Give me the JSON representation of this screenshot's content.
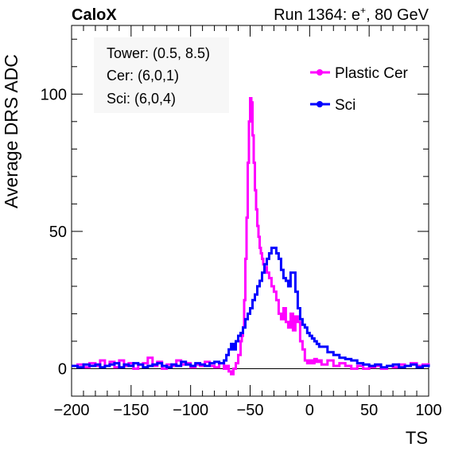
{
  "header": {
    "experiment": "CaloX",
    "run_prefix": "Run 1364: e",
    "run_superscript": "+",
    "run_suffix": ", 80 GeV"
  },
  "info_box": {
    "tower": "Tower: (0.5, 8.5)",
    "cer": "Cer: (6,0,1)",
    "sci": "Sci: (6,0,4)"
  },
  "chart_data": {
    "type": "line",
    "title": "",
    "xlabel": "TS",
    "ylabel": "Average DRS ADC",
    "xlim": [
      -200,
      100
    ],
    "ylim": [
      -10,
      125
    ],
    "xticks": [
      -200,
      -150,
      -100,
      -50,
      0,
      50,
      100
    ],
    "xtick_labels": [
      "−200",
      "−150",
      "−100",
      "−50",
      "0",
      "50",
      "100"
    ],
    "yticks": [
      0,
      50,
      100
    ],
    "ytick_labels": [
      "0",
      "50",
      "100"
    ],
    "grid": false,
    "legend_position": "top-right",
    "reference_line_y": 0,
    "series": [
      {
        "name": "Plastic Cer",
        "color": "#ff00ff",
        "x": [
          -200,
          -195,
          -190,
          -185,
          -180,
          -176,
          -172,
          -168,
          -164,
          -160,
          -156,
          -152,
          -148,
          -144,
          -140,
          -136,
          -132,
          -128,
          -124,
          -120,
          -116,
          -112,
          -108,
          -104,
          -100,
          -96,
          -92,
          -88,
          -84,
          -80,
          -76,
          -72,
          -70,
          -68,
          -66,
          -64,
          -62,
          -60,
          -58,
          -57,
          -56,
          -55,
          -54,
          -53,
          -52,
          -51,
          -50,
          -49,
          -48,
          -47,
          -46,
          -45,
          -44,
          -43,
          -42,
          -41,
          -40,
          -39,
          -38,
          -36,
          -34,
          -32,
          -30,
          -28,
          -26,
          -24,
          -22,
          -20,
          -18,
          -16,
          -14,
          -12,
          -10,
          -8,
          -6,
          -4,
          -2,
          0,
          2,
          4,
          6,
          8,
          10,
          15,
          20,
          25,
          30,
          35,
          40,
          45,
          50,
          55,
          60,
          65,
          70,
          75,
          80,
          85,
          90,
          95,
          100
        ],
        "values": [
          1.0,
          1.5,
          0.5,
          2.0,
          1.0,
          3.0,
          1.0,
          2.5,
          0.5,
          3.0,
          1.0,
          2.0,
          0.0,
          1.5,
          2.0,
          4.0,
          1.0,
          2.5,
          0.0,
          1.5,
          1.0,
          3.0,
          1.5,
          2.0,
          0.5,
          1.5,
          1.0,
          2.5,
          1.0,
          0.5,
          2.0,
          0.0,
          1.0,
          -1.0,
          -2.0,
          0.0,
          2.0,
          5.0,
          10.0,
          12.0,
          15.0,
          25.0,
          40.0,
          55.0,
          75.0,
          90.0,
          98.5,
          97.0,
          85.0,
          75.0,
          65.0,
          58.0,
          52.0,
          48.0,
          44.0,
          42.0,
          40.0,
          38.0,
          37.0,
          35.0,
          33.0,
          30.0,
          28.0,
          25.0,
          20.0,
          18.0,
          22.0,
          17.0,
          15.0,
          20.0,
          14.0,
          19.0,
          17.0,
          10.0,
          7.0,
          3.0,
          2.0,
          3.0,
          2.0,
          3.5,
          2.5,
          3.0,
          1.5,
          3.0,
          1.0,
          2.0,
          1.0,
          0.0,
          1.0,
          0.0,
          0.5,
          1.0,
          0.0,
          1.0,
          0.5,
          1.5,
          1.0,
          2.0,
          1.0,
          1.5,
          2.0
        ]
      },
      {
        "name": "Sci",
        "color": "#0000ff",
        "x": [
          -200,
          -195,
          -190,
          -185,
          -180,
          -176,
          -172,
          -168,
          -164,
          -160,
          -156,
          -152,
          -148,
          -144,
          -140,
          -136,
          -132,
          -128,
          -124,
          -120,
          -116,
          -112,
          -108,
          -104,
          -100,
          -96,
          -92,
          -88,
          -84,
          -80,
          -76,
          -72,
          -70,
          -68,
          -66,
          -64,
          -62,
          -60,
          -58,
          -56,
          -54,
          -52,
          -50,
          -48,
          -46,
          -44,
          -42,
          -40,
          -38,
          -36,
          -34,
          -32,
          -30,
          -28,
          -26,
          -24,
          -22,
          -20,
          -18,
          -16,
          -14,
          -12,
          -10,
          -8,
          -6,
          -4,
          -2,
          0,
          2,
          4,
          6,
          8,
          10,
          15,
          20,
          25,
          30,
          35,
          40,
          45,
          50,
          55,
          60,
          65,
          70,
          75,
          80,
          85,
          90,
          95,
          100
        ],
        "values": [
          1.0,
          0.5,
          1.5,
          1.0,
          1.5,
          0.5,
          1.0,
          1.5,
          2.0,
          0.5,
          1.5,
          1.0,
          2.0,
          1.5,
          0.5,
          1.0,
          1.5,
          2.0,
          1.0,
          0.5,
          1.5,
          1.0,
          2.5,
          1.5,
          1.0,
          2.0,
          1.5,
          1.0,
          2.0,
          2.5,
          2.0,
          3.0,
          5.0,
          7.0,
          9.0,
          7.0,
          10.0,
          12.0,
          13.0,
          15.0,
          18.0,
          20.0,
          22.0,
          25.0,
          27.0,
          30.0,
          32.0,
          35.0,
          38.0,
          40.0,
          42.0,
          44.0,
          44.0,
          42.0,
          40.0,
          36.0,
          33.0,
          32.0,
          30.0,
          35.0,
          35.0,
          28.0,
          22.0,
          18.0,
          16.0,
          15.0,
          13.0,
          12.0,
          11.0,
          10.0,
          9.0,
          8.0,
          8.0,
          6.0,
          5.0,
          4.0,
          3.5,
          3.0,
          2.0,
          1.5,
          1.0,
          1.5,
          0.5,
          1.0,
          1.5,
          0.5,
          1.0,
          1.5,
          0.5,
          1.0,
          1.5
        ]
      }
    ]
  }
}
